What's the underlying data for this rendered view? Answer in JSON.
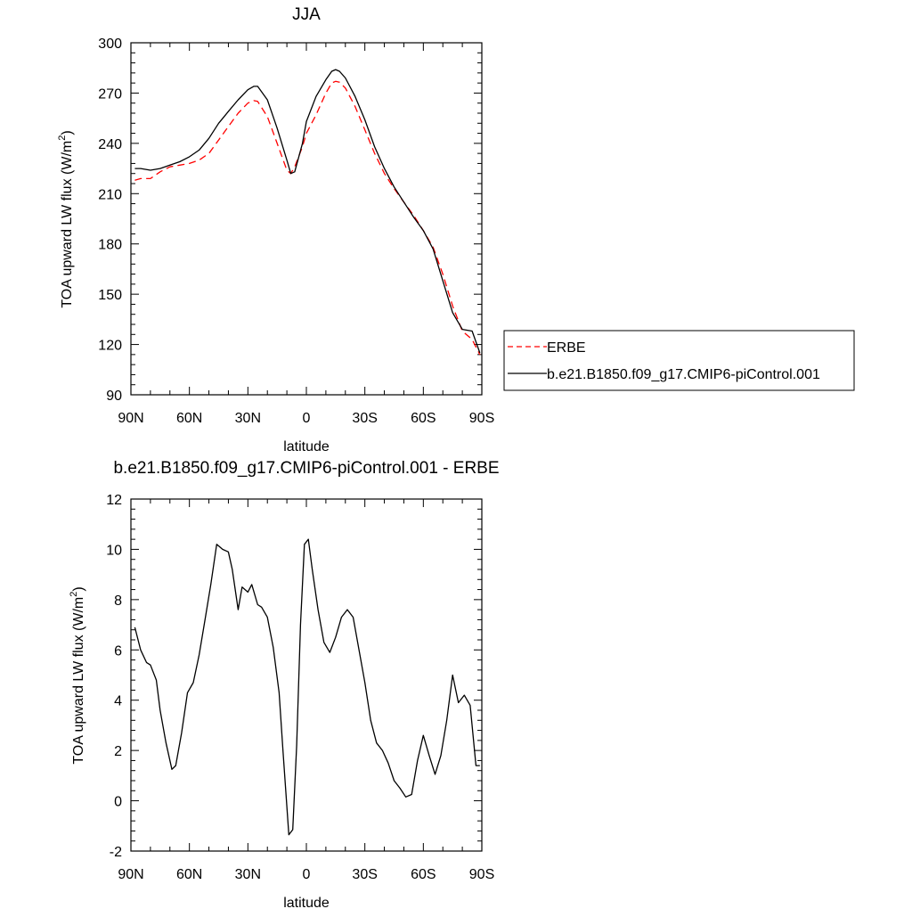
{
  "chart_data": [
    {
      "type": "line",
      "title": "JJA",
      "xlabel": "latitude",
      "ylabel": "TOA upward LW flux (W/m",
      "ylabel_sup": "2",
      "ylabel_close": ")",
      "xlim": [
        90,
        -90
      ],
      "ylim": [
        90,
        300
      ],
      "xticks": [
        90,
        60,
        30,
        0,
        -30,
        -60,
        -90
      ],
      "xtick_labels": [
        "90N",
        "60N",
        "30N",
        "0",
        "30S",
        "60S",
        "90S"
      ],
      "yticks": [
        90,
        120,
        150,
        180,
        210,
        240,
        270,
        300
      ],
      "ytick_labels": [
        "90",
        "120",
        "150",
        "180",
        "210",
        "240",
        "270",
        "300"
      ],
      "legend": "right",
      "series": [
        {
          "name": "ERBE",
          "color": "#ff0000",
          "dash": "dashed",
          "x": [
            88,
            85,
            80,
            75,
            70,
            65,
            60,
            55,
            50,
            45,
            40,
            35,
            30,
            27,
            25,
            20,
            15,
            10,
            8,
            6,
            2,
            0,
            -5,
            -10,
            -13,
            -15,
            -17,
            -20,
            -25,
            -30,
            -35,
            -40,
            -45,
            -50,
            -55,
            -60,
            -65,
            -70,
            -75,
            -80,
            -85,
            -89
          ],
          "y": [
            218,
            219,
            219,
            223,
            226,
            227,
            228,
            230,
            234,
            242,
            250,
            258,
            264,
            265.5,
            265,
            256,
            240,
            224,
            222,
            226,
            238,
            246,
            257,
            270,
            276,
            277,
            276.5,
            273,
            262,
            248,
            234,
            222,
            213,
            205,
            197,
            188,
            178,
            162,
            143,
            128,
            123,
            114
          ]
        },
        {
          "name": "b.e21.B1850.f09_g17.CMIP6-piControl.001",
          "color": "#000000",
          "dash": "solid",
          "x": [
            88,
            85,
            80,
            75,
            70,
            65,
            60,
            55,
            50,
            45,
            40,
            35,
            30,
            27,
            25,
            20,
            15,
            10,
            8,
            6,
            2,
            0,
            -5,
            -10,
            -13,
            -15,
            -17,
            -20,
            -25,
            -30,
            -35,
            -40,
            -45,
            -50,
            -55,
            -60,
            -65,
            -70,
            -75,
            -80,
            -85,
            -89
          ],
          "y": [
            225,
            225,
            224,
            225,
            227,
            229,
            232,
            236,
            243,
            252,
            259,
            266,
            272,
            274,
            274,
            266,
            249,
            230,
            222,
            223,
            240,
            253,
            268,
            278,
            283,
            284,
            283,
            279,
            268,
            254,
            238,
            225,
            214,
            205,
            196,
            188,
            177,
            158,
            139,
            129,
            128,
            115
          ]
        }
      ]
    },
    {
      "type": "line",
      "title": "b.e21.B1850.f09_g17.CMIP6-piControl.001 - ERBE",
      "xlabel": "latitude",
      "ylabel": "TOA upward LW flux (W/m",
      "ylabel_sup": "2",
      "ylabel_close": ")",
      "xlim": [
        90,
        -90
      ],
      "ylim": [
        -2,
        12
      ],
      "xticks": [
        90,
        60,
        30,
        0,
        -30,
        -60,
        -90
      ],
      "xtick_labels": [
        "90N",
        "60N",
        "30N",
        "0",
        "30S",
        "60S",
        "90S"
      ],
      "yticks": [
        -2,
        0,
        2,
        4,
        6,
        8,
        10,
        12
      ],
      "ytick_labels": [
        "-2",
        "0",
        "2",
        "4",
        "6",
        "8",
        "10",
        "12"
      ],
      "series": [
        {
          "color": "#000000",
          "dash": "solid",
          "x": [
            88,
            85,
            82,
            80,
            77,
            75,
            72,
            69,
            67,
            64,
            61,
            58,
            55,
            52,
            49,
            46,
            43,
            40,
            38,
            35,
            33,
            30,
            28,
            25,
            23,
            20,
            17,
            14,
            12,
            9,
            7,
            5,
            3,
            1,
            -1,
            -3,
            -6,
            -9,
            -12,
            -15,
            -18,
            -21,
            -24,
            -27,
            -30,
            -33,
            -36,
            -39,
            -42,
            -45,
            -48,
            -51,
            -54,
            -57,
            -60,
            -63,
            -66,
            -69,
            -72,
            -75,
            -78,
            -81,
            -84,
            -87,
            -89
          ],
          "y": [
            6.9,
            6.0,
            5.5,
            5.4,
            4.8,
            3.6,
            2.3,
            1.25,
            1.4,
            2.7,
            4.3,
            4.7,
            5.8,
            7.2,
            8.6,
            10.2,
            10.0,
            9.9,
            9.2,
            7.6,
            8.5,
            8.3,
            8.6,
            7.8,
            7.7,
            7.3,
            6.1,
            4.3,
            2.0,
            -1.35,
            -1.15,
            2.2,
            7.0,
            10.2,
            10.4,
            9.2,
            7.6,
            6.3,
            5.9,
            6.5,
            7.3,
            7.6,
            7.3,
            6.0,
            4.7,
            3.2,
            2.3,
            2.0,
            1.5,
            0.8,
            0.5,
            0.15,
            0.25,
            1.6,
            2.6,
            1.8,
            1.05,
            1.8,
            3.2,
            5.0,
            3.9,
            4.2,
            3.8,
            1.4,
            1.4
          ]
        }
      ]
    }
  ]
}
